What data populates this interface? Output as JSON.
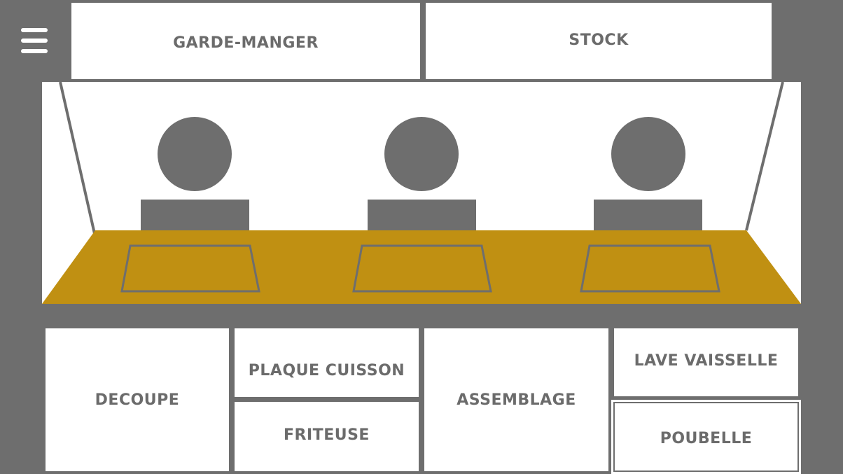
{
  "menu": {
    "icon": "hamburger-menu-icon"
  },
  "top_zones": {
    "garde_manger": "GARDE-MANGER",
    "stock": "STOCK"
  },
  "kitchen": {
    "cook_count": 3,
    "colors": {
      "background": "#6e6e6e",
      "counter": "#c09012",
      "cook": "#6e6e6e",
      "room": "#ffffff"
    }
  },
  "bottom_zones": {
    "decoupe": "DECOUPE",
    "plaque_cuisson": "PLAQUE CUISSON",
    "friteuse": "FRITEUSE",
    "assemblage": "ASSEMBLAGE",
    "lave_vaisselle": "LAVE VAISSELLE",
    "poubelle": "POUBELLE"
  }
}
